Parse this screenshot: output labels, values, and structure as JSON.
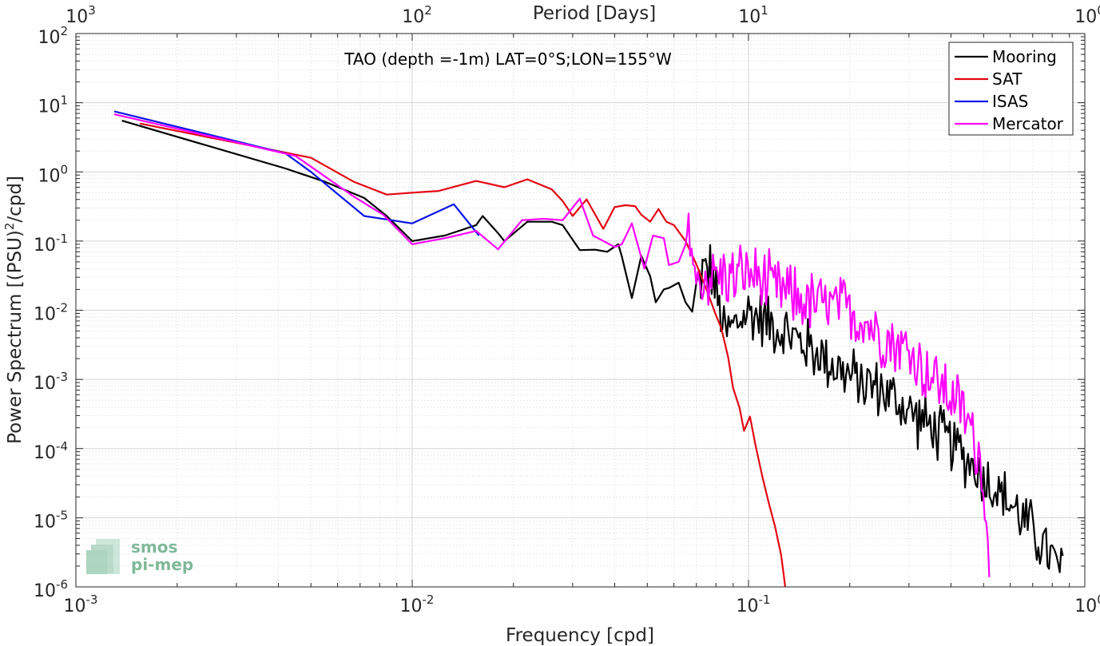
{
  "chart_data": {
    "type": "line",
    "title": "TAO (depth =-1m) LAT=0°S;LON=155°W",
    "xlabel": "Frequency [cpd]",
    "ylabel": "Power Spectrum [(PSU)",
    "ylabel_sup": "2",
    "ylabel_tail": "/cpd]",
    "top_axis_label": "Period [Days]",
    "x_scale": "log",
    "y_scale": "log",
    "xlim": [
      0.001,
      1
    ],
    "ylim": [
      1e-06,
      100
    ],
    "grid": true,
    "legend_position": "top-right",
    "x_ticks": [
      {
        "v": 0.001,
        "base": "10",
        "exp": "-3"
      },
      {
        "v": 0.01,
        "base": "10",
        "exp": "-2"
      },
      {
        "v": 0.1,
        "base": "10",
        "exp": "-1"
      },
      {
        "v": 1,
        "base": "10",
        "exp": "0"
      }
    ],
    "y_ticks": [
      {
        "v": 1e-06,
        "base": "10",
        "exp": "-6"
      },
      {
        "v": 1e-05,
        "base": "10",
        "exp": "-5"
      },
      {
        "v": 0.0001,
        "base": "10",
        "exp": "-4"
      },
      {
        "v": 0.001,
        "base": "10",
        "exp": "-3"
      },
      {
        "v": 0.01,
        "base": "10",
        "exp": "-2"
      },
      {
        "v": 0.1,
        "base": "10",
        "exp": "-1"
      },
      {
        "v": 1,
        "base": "10",
        "exp": "0"
      },
      {
        "v": 10,
        "base": "10",
        "exp": "1"
      },
      {
        "v": 100,
        "base": "10",
        "exp": "2"
      }
    ],
    "top_ticks": [
      {
        "v": 0.001,
        "base": "10",
        "exp": "3"
      },
      {
        "v": 0.01,
        "base": "10",
        "exp": "2"
      },
      {
        "v": 0.1,
        "base": "10",
        "exp": "1"
      },
      {
        "v": 1,
        "base": "10",
        "exp": "0"
      }
    ],
    "series": [
      {
        "name": "Mooring",
        "color": "#000000",
        "noisy": {
          "x0": 0.07,
          "x1": 0.86,
          "n": 240,
          "amp": 0.5
        },
        "points": [
          [
            0.00137,
            5.5
          ],
          [
            0.0042,
            1.12
          ],
          [
            0.0055,
            0.72
          ],
          [
            0.0072,
            0.42
          ],
          [
            0.0084,
            0.23
          ],
          [
            0.01,
            0.1
          ],
          [
            0.0125,
            0.12
          ],
          [
            0.0155,
            0.17
          ],
          [
            0.0162,
            0.23
          ],
          [
            0.018,
            0.13
          ],
          [
            0.0188,
            0.1
          ],
          [
            0.022,
            0.19
          ],
          [
            0.026,
            0.19
          ],
          [
            0.028,
            0.17
          ],
          [
            0.0315,
            0.074
          ],
          [
            0.035,
            0.075
          ],
          [
            0.038,
            0.07
          ],
          [
            0.041,
            0.09
          ],
          [
            0.042,
            0.06
          ],
          [
            0.045,
            0.015
          ],
          [
            0.048,
            0.061
          ],
          [
            0.051,
            0.031
          ],
          [
            0.053,
            0.013
          ],
          [
            0.056,
            0.02
          ],
          [
            0.058,
            0.021
          ],
          [
            0.062,
            0.025
          ],
          [
            0.065,
            0.013
          ],
          [
            0.068,
            0.0095
          ],
          [
            0.07,
            0.02
          ],
          [
            0.073,
            0.035
          ],
          [
            0.077,
            0.04
          ],
          [
            0.08,
            0.018
          ],
          [
            0.085,
            0.0045
          ],
          [
            0.1,
            0.0095
          ],
          [
            0.12,
            0.006
          ],
          [
            0.15,
            0.003
          ],
          [
            0.2,
            0.0011
          ],
          [
            0.25,
            0.0007
          ],
          [
            0.3,
            0.00035
          ],
          [
            0.4,
            0.00012
          ],
          [
            0.5,
            4e-05
          ],
          [
            0.6,
            1.6e-05
          ],
          [
            0.7,
            6.5e-06
          ],
          [
            0.8,
            2.5e-06
          ],
          [
            0.86,
            1.5e-06
          ]
        ]
      },
      {
        "name": "SAT",
        "color": "#e30613",
        "points": [
          [
            0.00155,
            5.0
          ],
          [
            0.0042,
            1.9
          ],
          [
            0.005,
            1.6
          ],
          [
            0.0067,
            0.72
          ],
          [
            0.0084,
            0.47
          ],
          [
            0.01,
            0.5
          ],
          [
            0.012,
            0.53
          ],
          [
            0.0155,
            0.74
          ],
          [
            0.0188,
            0.6
          ],
          [
            0.022,
            0.78
          ],
          [
            0.026,
            0.56
          ],
          [
            0.028,
            0.38
          ],
          [
            0.03,
            0.23
          ],
          [
            0.033,
            0.4
          ],
          [
            0.037,
            0.15
          ],
          [
            0.04,
            0.31
          ],
          [
            0.043,
            0.33
          ],
          [
            0.046,
            0.32
          ],
          [
            0.048,
            0.24
          ],
          [
            0.051,
            0.19
          ],
          [
            0.054,
            0.29
          ],
          [
            0.057,
            0.19
          ],
          [
            0.06,
            0.17
          ],
          [
            0.065,
            0.1
          ],
          [
            0.07,
            0.046
          ],
          [
            0.075,
            0.02
          ],
          [
            0.08,
            0.0085
          ],
          [
            0.083,
            0.0055
          ],
          [
            0.087,
            0.0021
          ],
          [
            0.09,
            0.00075
          ],
          [
            0.094,
            0.00039
          ],
          [
            0.097,
            0.00018
          ],
          [
            0.101,
            0.00029
          ],
          [
            0.105,
            0.00011
          ],
          [
            0.11,
            3.9e-05
          ],
          [
            0.115,
            1.6e-05
          ],
          [
            0.12,
            7.4e-06
          ],
          [
            0.125,
            2.9e-06
          ],
          [
            0.128,
            1.2e-06
          ],
          [
            0.13,
            6e-07
          ]
        ]
      },
      {
        "name": "ISAS",
        "color": "#0a14e6",
        "points": [
          [
            0.0013,
            7.5
          ],
          [
            0.0042,
            1.85
          ],
          [
            0.005,
            1.0
          ],
          [
            0.0072,
            0.23
          ],
          [
            0.0087,
            0.2
          ],
          [
            0.01,
            0.18
          ],
          [
            0.0133,
            0.34
          ],
          [
            0.0158,
            0.12
          ]
        ]
      },
      {
        "name": "Mercator",
        "color": "#ff00ff",
        "noisy": {
          "x0": 0.065,
          "x1": 0.52,
          "n": 200,
          "amp": 0.55
        },
        "points": [
          [
            0.0013,
            6.8
          ],
          [
            0.0045,
            1.7
          ],
          [
            0.0067,
            0.44
          ],
          [
            0.0082,
            0.24
          ],
          [
            0.01,
            0.09
          ],
          [
            0.0125,
            0.11
          ],
          [
            0.0155,
            0.14
          ],
          [
            0.018,
            0.076
          ],
          [
            0.0212,
            0.2
          ],
          [
            0.0246,
            0.21
          ],
          [
            0.028,
            0.2
          ],
          [
            0.0315,
            0.41
          ],
          [
            0.0345,
            0.12
          ],
          [
            0.04,
            0.082
          ],
          [
            0.042,
            0.09
          ],
          [
            0.045,
            0.18
          ],
          [
            0.049,
            0.04
          ],
          [
            0.052,
            0.12
          ],
          [
            0.056,
            0.11
          ],
          [
            0.058,
            0.045
          ],
          [
            0.062,
            0.05
          ],
          [
            0.067,
            0.15
          ],
          [
            0.07,
            0.022
          ],
          [
            0.075,
            0.031
          ],
          [
            0.08,
            0.033
          ],
          [
            0.09,
            0.03
          ],
          [
            0.1,
            0.035
          ],
          [
            0.12,
            0.02
          ],
          [
            0.15,
            0.013
          ],
          [
            0.2,
            0.01
          ],
          [
            0.25,
            0.0045
          ],
          [
            0.3,
            0.0025
          ],
          [
            0.35,
            0.0011
          ],
          [
            0.4,
            0.0006
          ],
          [
            0.45,
            0.00025
          ],
          [
            0.48,
            0.0001
          ],
          [
            0.5,
            3.5e-05
          ],
          [
            0.51,
            9e-06
          ],
          [
            0.515,
            3e-06
          ],
          [
            0.52,
            1e-06
          ]
        ]
      }
    ]
  },
  "watermark": {
    "line1": "smos",
    "line2": "pi-mep"
  }
}
